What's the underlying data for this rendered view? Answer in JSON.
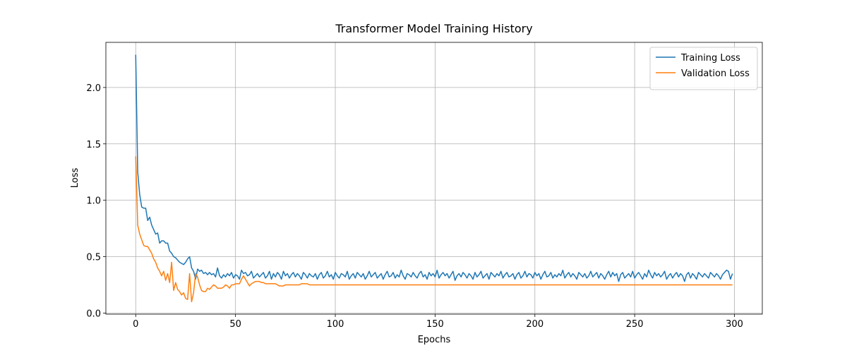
{
  "chart_data": {
    "type": "line",
    "title": "Transformer Model Training History",
    "x_label": "Epochs",
    "y_label": "Loss",
    "x": [
      0,
      1,
      2,
      3,
      4,
      5,
      6,
      7,
      8,
      9,
      10,
      11,
      12,
      13,
      14,
      15,
      16,
      17,
      18,
      19,
      20,
      21,
      22,
      23,
      24,
      25,
      26,
      27,
      28,
      29,
      30,
      31,
      32,
      33,
      34,
      35,
      36,
      37,
      38,
      39,
      40,
      41,
      42,
      43,
      44,
      45,
      46,
      47,
      48,
      49,
      50,
      51,
      52,
      53,
      54,
      55,
      56,
      57,
      58,
      59,
      60,
      61,
      62,
      63,
      64,
      65,
      66,
      67,
      68,
      69,
      70,
      71,
      72,
      73,
      74,
      75,
      76,
      77,
      78,
      79,
      80,
      81,
      82,
      83,
      84,
      85,
      86,
      87,
      88,
      89,
      90,
      91,
      92,
      93,
      94,
      95,
      96,
      97,
      98,
      99,
      100,
      101,
      102,
      103,
      104,
      105,
      106,
      107,
      108,
      109,
      110,
      111,
      112,
      113,
      114,
      115,
      116,
      117,
      118,
      119,
      120,
      121,
      122,
      123,
      124,
      125,
      126,
      127,
      128,
      129,
      130,
      131,
      132,
      133,
      134,
      135,
      136,
      137,
      138,
      139,
      140,
      141,
      142,
      143,
      144,
      145,
      146,
      147,
      148,
      149,
      150,
      151,
      152,
      153,
      154,
      155,
      156,
      157,
      158,
      159,
      160,
      161,
      162,
      163,
      164,
      165,
      166,
      167,
      168,
      169,
      170,
      171,
      172,
      173,
      174,
      175,
      176,
      177,
      178,
      179,
      180,
      181,
      182,
      183,
      184,
      185,
      186,
      187,
      188,
      189,
      190,
      191,
      192,
      193,
      194,
      195,
      196,
      197,
      198,
      199,
      200,
      201,
      202,
      203,
      204,
      205,
      206,
      207,
      208,
      209,
      210,
      211,
      212,
      213,
      214,
      215,
      216,
      217,
      218,
      219,
      220,
      221,
      222,
      223,
      224,
      225,
      226,
      227,
      228,
      229,
      230,
      231,
      232,
      233,
      234,
      235,
      236,
      237,
      238,
      239,
      240,
      241,
      242,
      243,
      244,
      245,
      246,
      247,
      248,
      249,
      250,
      251,
      252,
      253,
      254,
      255,
      256,
      257,
      258,
      259,
      260,
      261,
      262,
      263,
      264,
      265,
      266,
      267,
      268,
      269,
      270,
      271,
      272,
      273,
      274,
      275,
      276,
      277,
      278,
      279,
      280,
      281,
      282,
      283,
      284,
      285,
      286,
      287,
      288,
      289,
      290,
      291,
      292,
      293,
      294,
      295,
      296,
      297,
      298,
      299
    ],
    "series": [
      {
        "name": "Training Loss",
        "color": "#1f77b4",
        "values": [
          2.29,
          1.25,
          1.05,
          0.94,
          0.93,
          0.93,
          0.82,
          0.85,
          0.78,
          0.74,
          0.7,
          0.71,
          0.62,
          0.64,
          0.64,
          0.62,
          0.62,
          0.55,
          0.53,
          0.5,
          0.49,
          0.47,
          0.45,
          0.44,
          0.43,
          0.45,
          0.48,
          0.5,
          0.4,
          0.37,
          0.3,
          0.39,
          0.37,
          0.38,
          0.35,
          0.36,
          0.34,
          0.36,
          0.34,
          0.35,
          0.32,
          0.4,
          0.33,
          0.31,
          0.34,
          0.32,
          0.35,
          0.33,
          0.36,
          0.31,
          0.34,
          0.33,
          0.3,
          0.38,
          0.35,
          0.36,
          0.33,
          0.34,
          0.37,
          0.31,
          0.33,
          0.35,
          0.32,
          0.34,
          0.36,
          0.31,
          0.33,
          0.37,
          0.3,
          0.35,
          0.32,
          0.36,
          0.34,
          0.3,
          0.37,
          0.33,
          0.35,
          0.31,
          0.34,
          0.36,
          0.32,
          0.35,
          0.33,
          0.3,
          0.36,
          0.34,
          0.31,
          0.35,
          0.33,
          0.32,
          0.35,
          0.3,
          0.34,
          0.36,
          0.31,
          0.33,
          0.37,
          0.32,
          0.34,
          0.3,
          0.36,
          0.33,
          0.31,
          0.35,
          0.34,
          0.32,
          0.37,
          0.3,
          0.33,
          0.35,
          0.31,
          0.36,
          0.34,
          0.32,
          0.35,
          0.3,
          0.33,
          0.37,
          0.32,
          0.34,
          0.36,
          0.31,
          0.33,
          0.35,
          0.3,
          0.34,
          0.37,
          0.32,
          0.33,
          0.36,
          0.31,
          0.34,
          0.32,
          0.38,
          0.33,
          0.3,
          0.35,
          0.34,
          0.32,
          0.36,
          0.33,
          0.31,
          0.35,
          0.37,
          0.32,
          0.34,
          0.3,
          0.36,
          0.33,
          0.35,
          0.32,
          0.38,
          0.31,
          0.34,
          0.36,
          0.33,
          0.35,
          0.31,
          0.34,
          0.37,
          0.29,
          0.33,
          0.35,
          0.32,
          0.36,
          0.34,
          0.31,
          0.35,
          0.33,
          0.3,
          0.36,
          0.32,
          0.34,
          0.37,
          0.31,
          0.33,
          0.35,
          0.3,
          0.36,
          0.34,
          0.32,
          0.35,
          0.33,
          0.37,
          0.31,
          0.34,
          0.36,
          0.32,
          0.33,
          0.35,
          0.3,
          0.34,
          0.36,
          0.31,
          0.33,
          0.37,
          0.32,
          0.35,
          0.34,
          0.31,
          0.36,
          0.33,
          0.35,
          0.3,
          0.34,
          0.37,
          0.32,
          0.33,
          0.36,
          0.31,
          0.34,
          0.32,
          0.35,
          0.33,
          0.38,
          0.31,
          0.34,
          0.36,
          0.32,
          0.35,
          0.33,
          0.3,
          0.36,
          0.34,
          0.32,
          0.35,
          0.31,
          0.33,
          0.37,
          0.32,
          0.34,
          0.36,
          0.31,
          0.35,
          0.33,
          0.3,
          0.34,
          0.37,
          0.32,
          0.36,
          0.33,
          0.35,
          0.28,
          0.34,
          0.36,
          0.31,
          0.33,
          0.35,
          0.32,
          0.37,
          0.31,
          0.34,
          0.36,
          0.33,
          0.3,
          0.35,
          0.32,
          0.38,
          0.34,
          0.31,
          0.36,
          0.33,
          0.35,
          0.32,
          0.34,
          0.37,
          0.3,
          0.33,
          0.35,
          0.31,
          0.34,
          0.36,
          0.32,
          0.35,
          0.33,
          0.28,
          0.34,
          0.36,
          0.31,
          0.35,
          0.33,
          0.3,
          0.36,
          0.34,
          0.32,
          0.35,
          0.33,
          0.31,
          0.36,
          0.34,
          0.32,
          0.35,
          0.33,
          0.3,
          0.34,
          0.36,
          0.38,
          0.37,
          0.3,
          0.35
        ]
      },
      {
        "name": "Validation Loss",
        "color": "#ff7f0e",
        "values": [
          1.39,
          0.78,
          0.7,
          0.65,
          0.6,
          0.59,
          0.59,
          0.56,
          0.53,
          0.48,
          0.45,
          0.4,
          0.37,
          0.33,
          0.37,
          0.29,
          0.35,
          0.27,
          0.45,
          0.2,
          0.27,
          0.21,
          0.19,
          0.16,
          0.18,
          0.13,
          0.12,
          0.35,
          0.1,
          0.18,
          0.35,
          0.32,
          0.25,
          0.2,
          0.19,
          0.19,
          0.22,
          0.21,
          0.23,
          0.25,
          0.24,
          0.22,
          0.22,
          0.22,
          0.23,
          0.25,
          0.24,
          0.22,
          0.25,
          0.25,
          0.26,
          0.26,
          0.26,
          0.3,
          0.33,
          0.3,
          0.27,
          0.24,
          0.26,
          0.27,
          0.28,
          0.28,
          0.28,
          0.27,
          0.27,
          0.26,
          0.26,
          0.26,
          0.26,
          0.26,
          0.26,
          0.25,
          0.24,
          0.24,
          0.24,
          0.25,
          0.25,
          0.25,
          0.25,
          0.25,
          0.25,
          0.25,
          0.25,
          0.26,
          0.26,
          0.26,
          0.26,
          0.25,
          0.25,
          0.25,
          0.25,
          0.25,
          0.25,
          0.25,
          0.25,
          0.25,
          0.25,
          0.25,
          0.25,
          0.25,
          0.25,
          0.25,
          0.25,
          0.25,
          0.25,
          0.25,
          0.25,
          0.25,
          0.25,
          0.25,
          0.25,
          0.25,
          0.25,
          0.25,
          0.25,
          0.25,
          0.25,
          0.25,
          0.25,
          0.25,
          0.25,
          0.25,
          0.25,
          0.25,
          0.25,
          0.25,
          0.25,
          0.25,
          0.25,
          0.25,
          0.25,
          0.25,
          0.25,
          0.25,
          0.25,
          0.25,
          0.25,
          0.25,
          0.25,
          0.25,
          0.25,
          0.25,
          0.25,
          0.25,
          0.25,
          0.25,
          0.25,
          0.25,
          0.25,
          0.25,
          0.25,
          0.25,
          0.25,
          0.25,
          0.25,
          0.25,
          0.25,
          0.25,
          0.25,
          0.25,
          0.25,
          0.25,
          0.25,
          0.25,
          0.25,
          0.25,
          0.25,
          0.25,
          0.25,
          0.25,
          0.25,
          0.25,
          0.25,
          0.25,
          0.25,
          0.25,
          0.25,
          0.25,
          0.25,
          0.25,
          0.25,
          0.25,
          0.25,
          0.25,
          0.25,
          0.25,
          0.25,
          0.25,
          0.25,
          0.25,
          0.25,
          0.25,
          0.25,
          0.25,
          0.25,
          0.25,
          0.25,
          0.25,
          0.25,
          0.25,
          0.25,
          0.25,
          0.25,
          0.25,
          0.25,
          0.25,
          0.25,
          0.25,
          0.25,
          0.25,
          0.25,
          0.25,
          0.25,
          0.25,
          0.25,
          0.25,
          0.25,
          0.25,
          0.25,
          0.25,
          0.25,
          0.25,
          0.25,
          0.25,
          0.25,
          0.25,
          0.25,
          0.25,
          0.25,
          0.25,
          0.25,
          0.25,
          0.25,
          0.25,
          0.25,
          0.25,
          0.25,
          0.25,
          0.25,
          0.25,
          0.25,
          0.25,
          0.25,
          0.25,
          0.25,
          0.25,
          0.25,
          0.25,
          0.25,
          0.25,
          0.25,
          0.25,
          0.25,
          0.25,
          0.25,
          0.25,
          0.25,
          0.25,
          0.25,
          0.25,
          0.25,
          0.25,
          0.25,
          0.25,
          0.25,
          0.25,
          0.25,
          0.25,
          0.25,
          0.25,
          0.25,
          0.25,
          0.25,
          0.25,
          0.25,
          0.25,
          0.25,
          0.25,
          0.25,
          0.25,
          0.25,
          0.25,
          0.25,
          0.25,
          0.25,
          0.25,
          0.25,
          0.25,
          0.25,
          0.25,
          0.25,
          0.25,
          0.25,
          0.25,
          0.25,
          0.25,
          0.25,
          0.25,
          0.25,
          0.25
        ]
      }
    ],
    "xlim": [
      -14.95,
      313.95
    ],
    "xticks": [
      0,
      50,
      100,
      150,
      200,
      250,
      300
    ],
    "ylim": [
      -0.01,
      2.4
    ],
    "yticks": [
      {
        "value": 0,
        "label": "0.0"
      },
      0.5,
      {
        "value": 1,
        "label": "1.0"
      },
      1.5,
      {
        "value": 2,
        "label": "2.0"
      }
    ],
    "grid": true,
    "legend": "upper right"
  }
}
